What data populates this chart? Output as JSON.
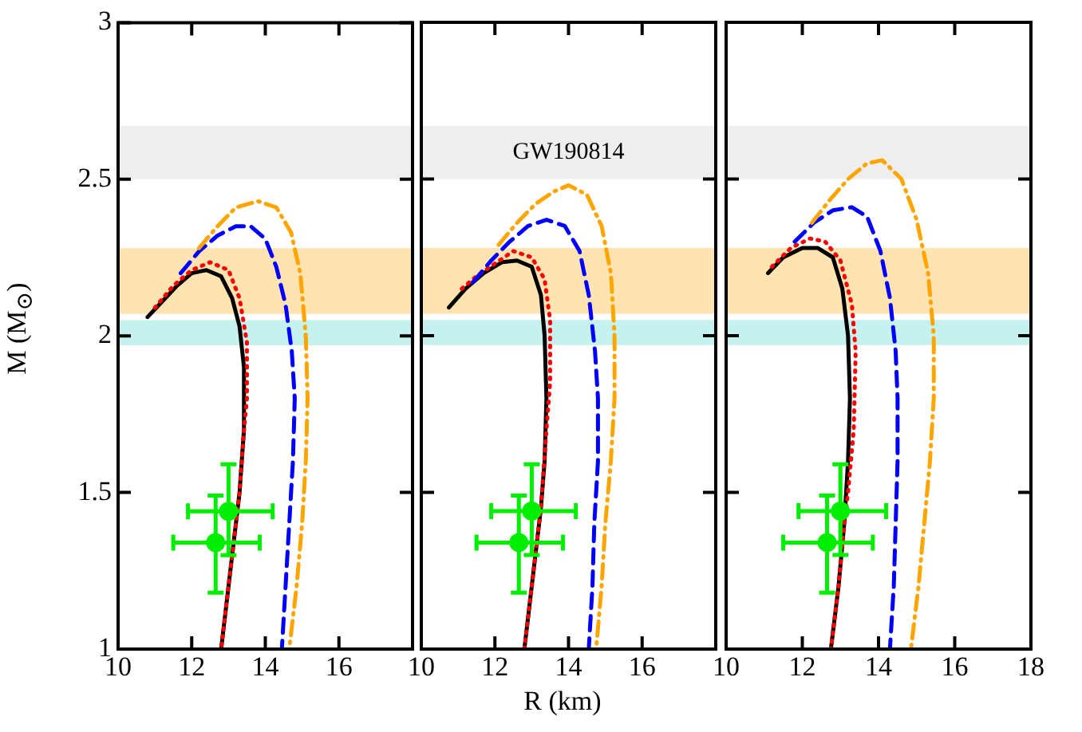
{
  "chart_data": [
    {
      "type": "line",
      "ylabel": "M (M$_{⊙}$)",
      "xlim": [
        10,
        18
      ],
      "xticks": [
        10,
        12,
        14,
        16
      ],
      "ylim": [
        1,
        3
      ],
      "yticks": [
        1,
        1.5,
        2,
        2.5,
        3
      ],
      "grid": false,
      "legend": false,
      "bands": [
        {
          "axis": "y",
          "from": 2.5,
          "to": 2.67,
          "color": "#c8c8c8"
        },
        {
          "axis": "y",
          "from": 2.07,
          "to": 2.28,
          "color": "#ffa500"
        },
        {
          "axis": "y",
          "from": 1.97,
          "to": 2.05,
          "color": "#40d0c8"
        }
      ],
      "series": [
        {
          "color": "#000000",
          "line_style": "solid",
          "marker": "none",
          "x": [
            10.8,
            11.2,
            11.6,
            12.0,
            12.4,
            12.8,
            13.1,
            13.3,
            13.42,
            13.42,
            13.3,
            13.1,
            12.95,
            12.8
          ],
          "values": [
            2.06,
            2.11,
            2.16,
            2.2,
            2.21,
            2.19,
            2.12,
            2.03,
            1.9,
            1.7,
            1.5,
            1.3,
            1.15,
            1.0
          ]
        },
        {
          "color": "#ff0000",
          "line_style": "dotted",
          "marker": "none",
          "x": [
            11.0,
            11.5,
            12.0,
            12.5,
            13.0,
            13.3,
            13.5,
            13.5,
            13.42,
            13.3,
            13.1,
            12.95,
            12.8
          ],
          "values": [
            2.09,
            2.16,
            2.21,
            2.235,
            2.21,
            2.12,
            1.98,
            1.8,
            1.7,
            1.5,
            1.3,
            1.15,
            1.0
          ]
        },
        {
          "color": "#0000ff",
          "line_style": "dashed",
          "marker": "none",
          "x": [
            11.7,
            12.2,
            12.7,
            13.2,
            13.6,
            14.0,
            14.3,
            14.55,
            14.72,
            14.8,
            14.75,
            14.65,
            14.55,
            14.45
          ],
          "values": [
            2.2,
            2.27,
            2.32,
            2.35,
            2.35,
            2.31,
            2.22,
            2.1,
            1.95,
            1.8,
            1.6,
            1.4,
            1.2,
            1.0
          ]
        },
        {
          "color": "#ffa500",
          "line_style": "dashdot",
          "marker": "none",
          "x": [
            12.2,
            12.7,
            13.2,
            13.8,
            14.3,
            14.7,
            14.95,
            15.1,
            15.15,
            15.1,
            15.0,
            14.85,
            14.65
          ],
          "values": [
            2.28,
            2.35,
            2.41,
            2.43,
            2.41,
            2.33,
            2.2,
            2.0,
            1.8,
            1.6,
            1.4,
            1.2,
            1.0
          ]
        },
        {
          "type": "scatter",
          "color": "#00ee00",
          "marker": "circle",
          "x": [
            13.0,
            12.65
          ],
          "values": [
            1.44,
            1.34
          ],
          "errors": [
            [
              1.3,
              1.59
            ],
            [
              1.18,
              1.49
            ]
          ],
          "xerrors": [
            [
              11.9,
              14.2
            ],
            [
              11.5,
              13.85
            ]
          ]
        }
      ]
    },
    {
      "type": "line",
      "xlabel": "R (km)",
      "xlim": [
        10,
        18
      ],
      "xticks": [
        10,
        12,
        14,
        16
      ],
      "ylim": [
        1,
        3
      ],
      "yticks": [
        1,
        1.5,
        2,
        2.5,
        3
      ],
      "tick_labels": "x",
      "grid": false,
      "legend": false,
      "bands": [
        {
          "axis": "y",
          "from": 2.5,
          "to": 2.67,
          "color": "#c8c8c8",
          "label": "GW190814"
        },
        {
          "axis": "y",
          "from": 2.07,
          "to": 2.28,
          "color": "#ffa500"
        },
        {
          "axis": "y",
          "from": 1.97,
          "to": 2.05,
          "color": "#40d0c8"
        }
      ],
      "series": [
        {
          "color": "#000000",
          "line_style": "solid",
          "marker": "none",
          "x": [
            10.75,
            11.2,
            11.7,
            12.2,
            12.6,
            13.0,
            13.25,
            13.35,
            13.4,
            13.35,
            13.25,
            13.05,
            12.8
          ],
          "values": [
            2.09,
            2.15,
            2.2,
            2.235,
            2.24,
            2.22,
            2.13,
            2.0,
            1.8,
            1.6,
            1.45,
            1.25,
            1.0
          ]
        },
        {
          "color": "#ff0000",
          "line_style": "dotted",
          "marker": "none",
          "x": [
            11.1,
            11.5,
            12.0,
            12.5,
            13.0,
            13.35,
            13.5,
            13.5,
            13.4,
            13.25,
            13.05,
            12.8
          ],
          "values": [
            2.15,
            2.19,
            2.23,
            2.27,
            2.25,
            2.18,
            2.05,
            1.85,
            1.7,
            1.45,
            1.25,
            1.0
          ]
        },
        {
          "color": "#0000ff",
          "line_style": "dashed",
          "marker": "none",
          "x": [
            11.4,
            11.9,
            12.4,
            12.9,
            13.4,
            13.9,
            14.3,
            14.55,
            14.72,
            14.8,
            14.8,
            14.7,
            14.65,
            14.55
          ],
          "values": [
            2.17,
            2.24,
            2.3,
            2.35,
            2.37,
            2.35,
            2.27,
            2.13,
            1.95,
            1.8,
            1.6,
            1.4,
            1.2,
            1.0
          ]
        },
        {
          "color": "#ffa500",
          "line_style": "dashdot",
          "marker": "none",
          "x": [
            12.1,
            12.6,
            13.1,
            13.6,
            14.0,
            14.5,
            14.9,
            15.15,
            15.25,
            15.25,
            15.15,
            15.0,
            14.9,
            14.75
          ],
          "values": [
            2.29,
            2.36,
            2.42,
            2.46,
            2.48,
            2.45,
            2.35,
            2.2,
            2.0,
            1.8,
            1.6,
            1.4,
            1.2,
            1.0
          ]
        },
        {
          "type": "scatter",
          "color": "#00ee00",
          "marker": "circle",
          "x": [
            13.0,
            12.65
          ],
          "values": [
            1.44,
            1.34
          ],
          "errors": [
            [
              1.3,
              1.59
            ],
            [
              1.18,
              1.49
            ]
          ],
          "xerrors": [
            [
              11.9,
              14.2
            ],
            [
              11.5,
              13.85
            ]
          ]
        }
      ]
    },
    {
      "type": "line",
      "xlim": [
        10,
        18
      ],
      "xticks": [
        10,
        12,
        14,
        16,
        18
      ],
      "ylim": [
        1,
        3
      ],
      "yticks": [
        1,
        1.5,
        2,
        2.5,
        3
      ],
      "tick_labels": "x",
      "grid": false,
      "legend": false,
      "bands": [
        {
          "axis": "y",
          "from": 2.5,
          "to": 2.67,
          "color": "#c8c8c8"
        },
        {
          "axis": "y",
          "from": 2.07,
          "to": 2.28,
          "color": "#ffa500"
        },
        {
          "axis": "y",
          "from": 1.97,
          "to": 2.05,
          "color": "#40d0c8"
        }
      ],
      "series": [
        {
          "color": "#000000",
          "line_style": "solid",
          "marker": "none",
          "x": [
            11.1,
            11.5,
            12.0,
            12.4,
            12.8,
            13.05,
            13.2,
            13.25,
            13.2,
            13.1,
            12.95,
            12.75
          ],
          "values": [
            2.2,
            2.25,
            2.28,
            2.28,
            2.25,
            2.15,
            2.0,
            1.8,
            1.6,
            1.4,
            1.2,
            1.0
          ]
        },
        {
          "color": "#ff0000",
          "line_style": "dotted",
          "marker": "none",
          "x": [
            11.2,
            11.7,
            12.2,
            12.6,
            13.0,
            13.3,
            13.4,
            13.35,
            13.2,
            13.1,
            12.95,
            12.75
          ],
          "values": [
            2.22,
            2.28,
            2.31,
            2.3,
            2.24,
            2.1,
            1.95,
            1.7,
            1.5,
            1.4,
            1.2,
            1.0
          ]
        },
        {
          "color": "#0000ff",
          "line_style": "dashed",
          "marker": "none",
          "x": [
            11.8,
            12.3,
            12.8,
            13.3,
            13.7,
            14.05,
            14.3,
            14.45,
            14.5,
            14.5,
            14.45,
            14.4,
            14.3
          ],
          "values": [
            2.3,
            2.36,
            2.4,
            2.41,
            2.38,
            2.27,
            2.12,
            1.95,
            1.8,
            1.6,
            1.4,
            1.2,
            1.0
          ]
        },
        {
          "color": "#ffa500",
          "line_style": "dashdot",
          "marker": "none",
          "x": [
            12.25,
            12.7,
            13.2,
            13.7,
            14.1,
            14.6,
            15.0,
            15.3,
            15.45,
            15.45,
            15.35,
            15.2,
            15.05,
            14.85
          ],
          "values": [
            2.36,
            2.43,
            2.5,
            2.55,
            2.56,
            2.5,
            2.37,
            2.2,
            2.0,
            1.8,
            1.6,
            1.4,
            1.2,
            1.0
          ]
        },
        {
          "type": "scatter",
          "color": "#00ee00",
          "marker": "circle",
          "x": [
            13.0,
            12.65
          ],
          "values": [
            1.44,
            1.34
          ],
          "errors": [
            [
              1.3,
              1.59
            ],
            [
              1.18,
              1.49
            ]
          ],
          "xerrors": [
            [
              11.9,
              14.2
            ],
            [
              11.5,
              13.85
            ]
          ]
        }
      ]
    }
  ]
}
